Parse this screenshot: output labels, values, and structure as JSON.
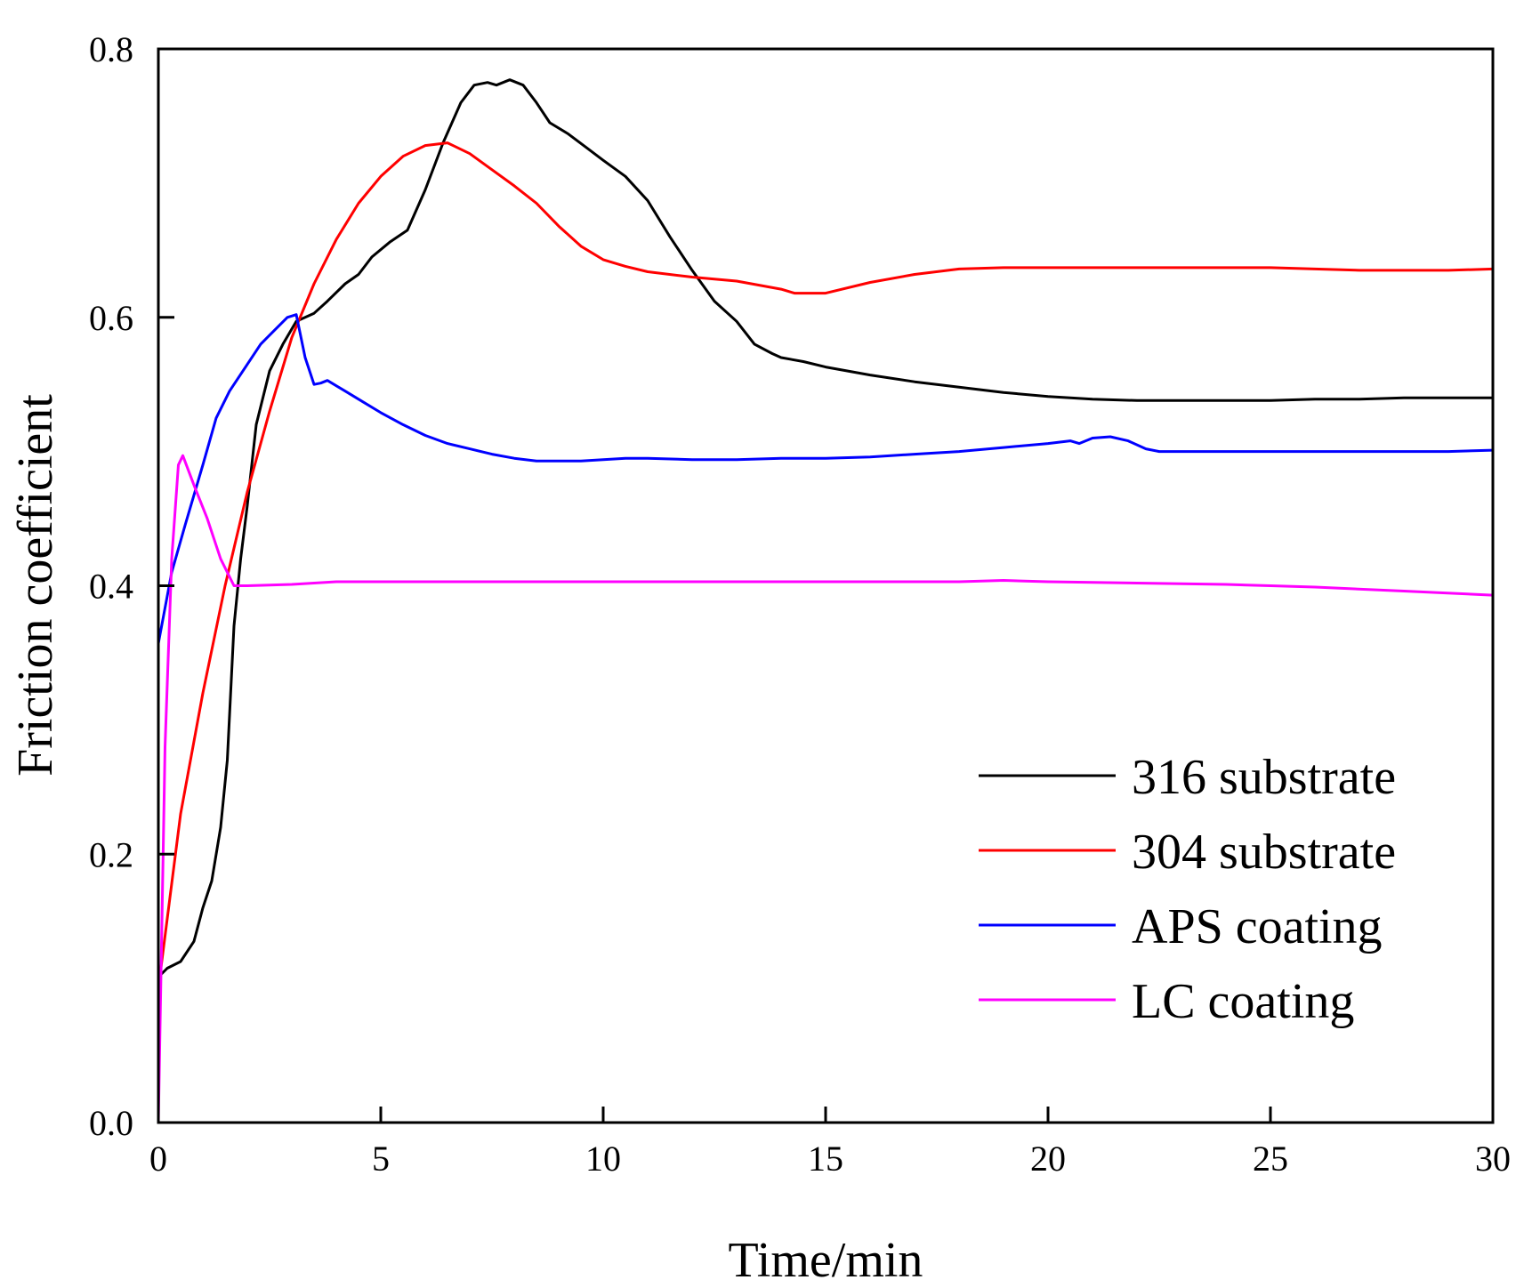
{
  "chart_data": {
    "type": "line",
    "title": "",
    "xlabel": "Time/min",
    "ylabel": "Friction coefficient",
    "xlim": [
      0,
      30
    ],
    "ylim": [
      0,
      0.8
    ],
    "xticks": [
      0,
      5,
      10,
      15,
      20,
      25,
      30
    ],
    "xtick_labels": [
      "0",
      "5",
      "10",
      "15",
      "20",
      "25",
      "30"
    ],
    "yticks": [
      0,
      0.2,
      0.4,
      0.6,
      0.8
    ],
    "ytick_labels": [
      "0.0",
      "0.2",
      "0.4",
      "0.6",
      "0.8"
    ],
    "grid": false,
    "legend_position": "bottom-right",
    "series": [
      {
        "name": "316 substrate",
        "color": "#000000",
        "x": [
          0,
          0.05,
          0.2,
          0.5,
          0.8,
          1.0,
          1.2,
          1.4,
          1.55,
          1.7,
          1.85,
          2.0,
          2.2,
          2.5,
          2.8,
          3.1,
          3.5,
          3.8,
          4.2,
          4.5,
          4.8,
          5.2,
          5.6,
          6.0,
          6.4,
          6.8,
          7.1,
          7.4,
          7.6,
          7.9,
          8.2,
          8.5,
          8.8,
          9.2,
          9.6,
          10.0,
          10.5,
          11.0,
          11.5,
          12.0,
          12.5,
          13.0,
          13.4,
          13.8,
          14.0,
          14.5,
          15.0,
          16.0,
          17.0,
          18.0,
          19.0,
          20.0,
          21.0,
          22.0,
          23.0,
          24.0,
          25.0,
          26.0,
          27.0,
          28.0,
          29.0,
          30.0
        ],
        "values": [
          0.08,
          0.11,
          0.115,
          0.12,
          0.135,
          0.16,
          0.18,
          0.22,
          0.27,
          0.37,
          0.42,
          0.46,
          0.52,
          0.56,
          0.58,
          0.597,
          0.603,
          0.612,
          0.625,
          0.632,
          0.645,
          0.656,
          0.665,
          0.695,
          0.73,
          0.76,
          0.773,
          0.775,
          0.773,
          0.777,
          0.773,
          0.76,
          0.745,
          0.737,
          0.727,
          0.717,
          0.705,
          0.687,
          0.66,
          0.635,
          0.612,
          0.597,
          0.58,
          0.573,
          0.57,
          0.567,
          0.563,
          0.557,
          0.552,
          0.548,
          0.544,
          0.541,
          0.539,
          0.538,
          0.538,
          0.538,
          0.538,
          0.539,
          0.539,
          0.54,
          0.54,
          0.54
        ]
      },
      {
        "name": "304 substrate",
        "color": "#ff0000",
        "x": [
          0,
          0.5,
          1.0,
          1.5,
          2.0,
          2.5,
          3.0,
          3.5,
          4.0,
          4.5,
          5.0,
          5.5,
          6.0,
          6.5,
          7.0,
          7.5,
          8.0,
          8.5,
          9.0,
          9.5,
          10.0,
          10.5,
          11.0,
          12.0,
          13.0,
          14.0,
          14.3,
          15.0,
          16.0,
          17.0,
          18.0,
          19.0,
          20.0,
          21.0,
          22.0,
          23.0,
          24.0,
          25.0,
          26.0,
          27.0,
          28.0,
          29.0,
          30.0
        ],
        "values": [
          0.1,
          0.23,
          0.32,
          0.4,
          0.47,
          0.53,
          0.585,
          0.625,
          0.658,
          0.685,
          0.705,
          0.72,
          0.728,
          0.73,
          0.722,
          0.71,
          0.698,
          0.685,
          0.668,
          0.653,
          0.643,
          0.638,
          0.634,
          0.63,
          0.627,
          0.621,
          0.618,
          0.618,
          0.626,
          0.632,
          0.636,
          0.637,
          0.637,
          0.637,
          0.637,
          0.637,
          0.637,
          0.637,
          0.636,
          0.635,
          0.635,
          0.635,
          0.636
        ]
      },
      {
        "name": "APS coating",
        "color": "#0000ff",
        "x": [
          0,
          0.3,
          0.6,
          1.0,
          1.3,
          1.6,
          2.0,
          2.3,
          2.6,
          2.9,
          3.1,
          3.3,
          3.5,
          3.65,
          3.8,
          4.2,
          4.6,
          5.0,
          5.5,
          6.0,
          6.5,
          7.0,
          7.5,
          8.0,
          8.5,
          9.0,
          9.5,
          10.0,
          10.5,
          11.0,
          12.0,
          13.0,
          14.0,
          15.0,
          16.0,
          17.0,
          18.0,
          19.0,
          20.0,
          20.5,
          20.7,
          21.0,
          21.4,
          21.8,
          22.2,
          22.5,
          22.8,
          23.0,
          24.0,
          25.0,
          26.0,
          27.0,
          28.0,
          29.0,
          30.0
        ],
        "values": [
          0.357,
          0.41,
          0.445,
          0.49,
          0.525,
          0.545,
          0.565,
          0.58,
          0.59,
          0.6,
          0.602,
          0.57,
          0.55,
          0.551,
          0.553,
          0.545,
          0.537,
          0.529,
          0.52,
          0.512,
          0.506,
          0.502,
          0.498,
          0.495,
          0.493,
          0.493,
          0.493,
          0.494,
          0.495,
          0.495,
          0.494,
          0.494,
          0.495,
          0.495,
          0.496,
          0.498,
          0.5,
          0.503,
          0.506,
          0.508,
          0.506,
          0.51,
          0.511,
          0.508,
          0.502,
          0.5,
          0.5,
          0.5,
          0.5,
          0.5,
          0.5,
          0.5,
          0.5,
          0.5,
          0.501
        ]
      },
      {
        "name": "LC coating",
        "color": "#ff00ff",
        "x": [
          0,
          0.15,
          0.3,
          0.45,
          0.55,
          0.8,
          1.1,
          1.4,
          1.7,
          2.0,
          3.0,
          4.0,
          5.0,
          6.0,
          8.0,
          10.0,
          12.0,
          14.0,
          16.0,
          18.0,
          19.0,
          20.0,
          22.0,
          24.0,
          25.0,
          26.0,
          28.0,
          30.0
        ],
        "values": [
          0.0,
          0.28,
          0.42,
          0.49,
          0.497,
          0.475,
          0.45,
          0.42,
          0.4,
          0.4,
          0.401,
          0.403,
          0.403,
          0.403,
          0.403,
          0.403,
          0.403,
          0.403,
          0.403,
          0.403,
          0.404,
          0.403,
          0.402,
          0.401,
          0.4,
          0.399,
          0.396,
          0.393
        ]
      }
    ]
  }
}
